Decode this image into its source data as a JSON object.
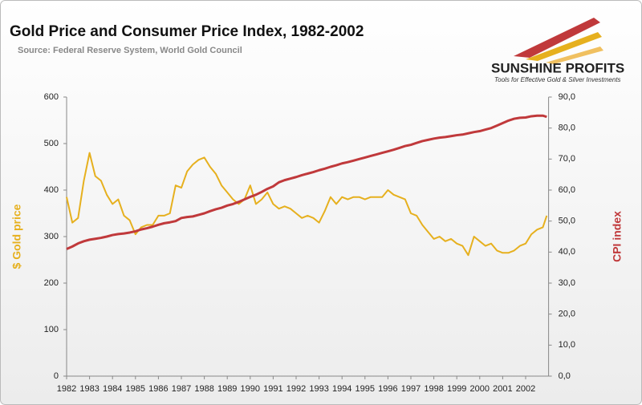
{
  "chart_data": {
    "type": "line",
    "title": "Gold Price and Consumer Price Index, 1982-2002",
    "subtitle": "Source: Federal Reserve System, World Gold Council",
    "brand": "SUNSHINE PROFITS",
    "tagline": "Tools for Effective Gold & Silver Investments",
    "ylabel": "$ Gold price",
    "y2label": "CPI index",
    "x": [
      1982,
      1982.25,
      1982.5,
      1982.75,
      1983,
      1983.25,
      1983.5,
      1983.75,
      1984,
      1984.25,
      1984.5,
      1984.75,
      1985,
      1985.25,
      1985.5,
      1985.75,
      1986,
      1986.25,
      1986.5,
      1986.75,
      1987,
      1987.25,
      1987.5,
      1987.75,
      1988,
      1988.25,
      1988.5,
      1988.75,
      1989,
      1989.25,
      1989.5,
      1989.75,
      1990,
      1990.25,
      1990.5,
      1990.75,
      1991,
      1991.25,
      1991.5,
      1991.75,
      1992,
      1992.25,
      1992.5,
      1992.75,
      1993,
      1993.25,
      1993.5,
      1993.75,
      1994,
      1994.25,
      1994.5,
      1994.75,
      1995,
      1995.25,
      1995.5,
      1995.75,
      1996,
      1996.25,
      1996.5,
      1996.75,
      1997,
      1997.25,
      1997.5,
      1997.75,
      1998,
      1998.25,
      1998.5,
      1998.75,
      1999,
      1999.25,
      1999.5,
      1999.75,
      2000,
      2000.25,
      2000.5,
      2000.75,
      2001,
      2001.25,
      2001.5,
      2001.75,
      2002,
      2002.25,
      2002.5,
      2002.75,
      2002.92
    ],
    "series": [
      {
        "name": "$ Gold price",
        "color": "#e6b01e",
        "axis": "y",
        "values": [
          385,
          330,
          340,
          420,
          480,
          430,
          420,
          390,
          370,
          380,
          345,
          335,
          305,
          320,
          325,
          325,
          345,
          345,
          350,
          410,
          405,
          440,
          455,
          465,
          470,
          450,
          435,
          410,
          395,
          380,
          370,
          380,
          410,
          370,
          380,
          395,
          370,
          360,
          365,
          360,
          350,
          340,
          345,
          340,
          330,
          355,
          385,
          370,
          385,
          380,
          385,
          385,
          380,
          385,
          385,
          385,
          400,
          390,
          385,
          380,
          350,
          345,
          325,
          310,
          295,
          300,
          290,
          295,
          285,
          280,
          260,
          300,
          290,
          280,
          285,
          270,
          265,
          265,
          270,
          280,
          285,
          305,
          315,
          320,
          345
        ]
      },
      {
        "name": "CPI index",
        "color": "#c0393b",
        "axis": "y2",
        "values": [
          41.0,
          41.8,
          42.8,
          43.5,
          44.0,
          44.3,
          44.6,
          45.0,
          45.5,
          45.8,
          46.0,
          46.3,
          46.7,
          47.3,
          47.7,
          48.2,
          48.8,
          49.3,
          49.6,
          50.0,
          51.0,
          51.3,
          51.5,
          52.0,
          52.5,
          53.2,
          53.8,
          54.3,
          55.0,
          55.5,
          56.2,
          57.0,
          57.8,
          58.5,
          59.4,
          60.4,
          61.2,
          62.5,
          63.2,
          63.7,
          64.2,
          64.8,
          65.3,
          65.8,
          66.4,
          66.9,
          67.5,
          68.0,
          68.6,
          69.0,
          69.5,
          70.0,
          70.5,
          71.0,
          71.5,
          72.0,
          72.5,
          73.0,
          73.6,
          74.2,
          74.6,
          75.2,
          75.8,
          76.2,
          76.6,
          76.9,
          77.1,
          77.4,
          77.7,
          77.9,
          78.3,
          78.7,
          79.0,
          79.5,
          80.0,
          80.8,
          81.6,
          82.4,
          83.0,
          83.3,
          83.4,
          83.8,
          84.0,
          84.0,
          83.6
        ]
      }
    ],
    "xlim": [
      1982,
      2003
    ],
    "xticks": [
      1982,
      1983,
      1984,
      1985,
      1986,
      1987,
      1988,
      1989,
      1990,
      1991,
      1992,
      1993,
      1994,
      1995,
      1996,
      1997,
      1998,
      1999,
      2000,
      2001,
      2002
    ],
    "ylim": [
      0,
      600
    ],
    "yticks": [
      0,
      100,
      200,
      300,
      400,
      500,
      600
    ],
    "y2lim": [
      0,
      90
    ],
    "y2ticks": [
      {
        "value": 0,
        "label": "0,0"
      },
      {
        "value": 10,
        "label": "10,0"
      },
      {
        "value": 20,
        "label": "20,0"
      },
      {
        "value": 30,
        "label": "30,0"
      },
      {
        "value": 40,
        "label": "40,0"
      },
      {
        "value": 50,
        "label": "50,0"
      },
      {
        "value": 60,
        "label": "60,0"
      },
      {
        "value": 70,
        "label": "70,0"
      },
      {
        "value": 80,
        "label": "80,0"
      },
      {
        "value": 90,
        "label": "90,0"
      }
    ],
    "grid": false
  }
}
